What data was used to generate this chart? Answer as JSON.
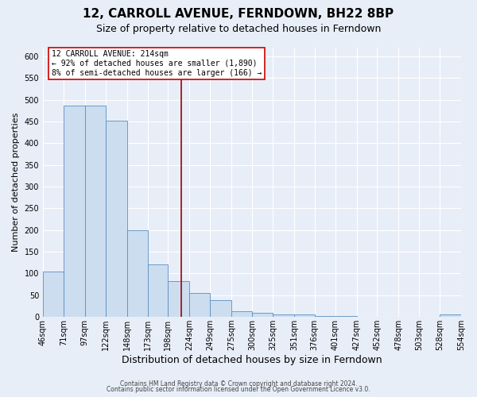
{
  "title": "12, CARROLL AVENUE, FERNDOWN, BH22 8BP",
  "subtitle": "Size of property relative to detached houses in Ferndown",
  "xlabel": "Distribution of detached houses by size in Ferndown",
  "ylabel": "Number of detached properties",
  "footer_line1": "Contains HM Land Registry data © Crown copyright and database right 2024.",
  "footer_line2": "Contains public sector information licensed under the Open Government Licence v3.0.",
  "bin_labels": [
    "46sqm",
    "71sqm",
    "97sqm",
    "122sqm",
    "148sqm",
    "173sqm",
    "198sqm",
    "224sqm",
    "249sqm",
    "275sqm",
    "300sqm",
    "325sqm",
    "351sqm",
    "376sqm",
    "401sqm",
    "427sqm",
    "452sqm",
    "478sqm",
    "503sqm",
    "528sqm",
    "554sqm"
  ],
  "bar_values": [
    105,
    487,
    487,
    452,
    200,
    121,
    83,
    55,
    38,
    14,
    9,
    6,
    5,
    3,
    3,
    0,
    0,
    0,
    0,
    5
  ],
  "bin_edges": [
    46,
    71,
    97,
    122,
    148,
    173,
    198,
    224,
    249,
    275,
    300,
    325,
    351,
    376,
    401,
    427,
    452,
    478,
    503,
    528,
    554
  ],
  "bar_color": "#ccddf0",
  "bar_edge_color": "#5a8fc0",
  "vline_x": 214,
  "vline_color": "#a00000",
  "annotation_title": "12 CARROLL AVENUE: 214sqm",
  "annotation_line1": "← 92% of detached houses are smaller (1,890)",
  "annotation_line2": "8% of semi-detached houses are larger (166) →",
  "annotation_box_facecolor": "#ffffff",
  "annotation_box_edgecolor": "#cc0000",
  "ylim": [
    0,
    620
  ],
  "yticks": [
    0,
    50,
    100,
    150,
    200,
    250,
    300,
    350,
    400,
    450,
    500,
    550,
    600
  ],
  "background_color": "#e8eef8",
  "plot_background": "#e8eef8",
  "grid_color": "#ffffff",
  "title_fontsize": 11,
  "subtitle_fontsize": 9,
  "ylabel_fontsize": 8,
  "xlabel_fontsize": 9,
  "tick_fontsize": 7,
  "annotation_fontsize": 7,
  "footer_fontsize": 5.5
}
